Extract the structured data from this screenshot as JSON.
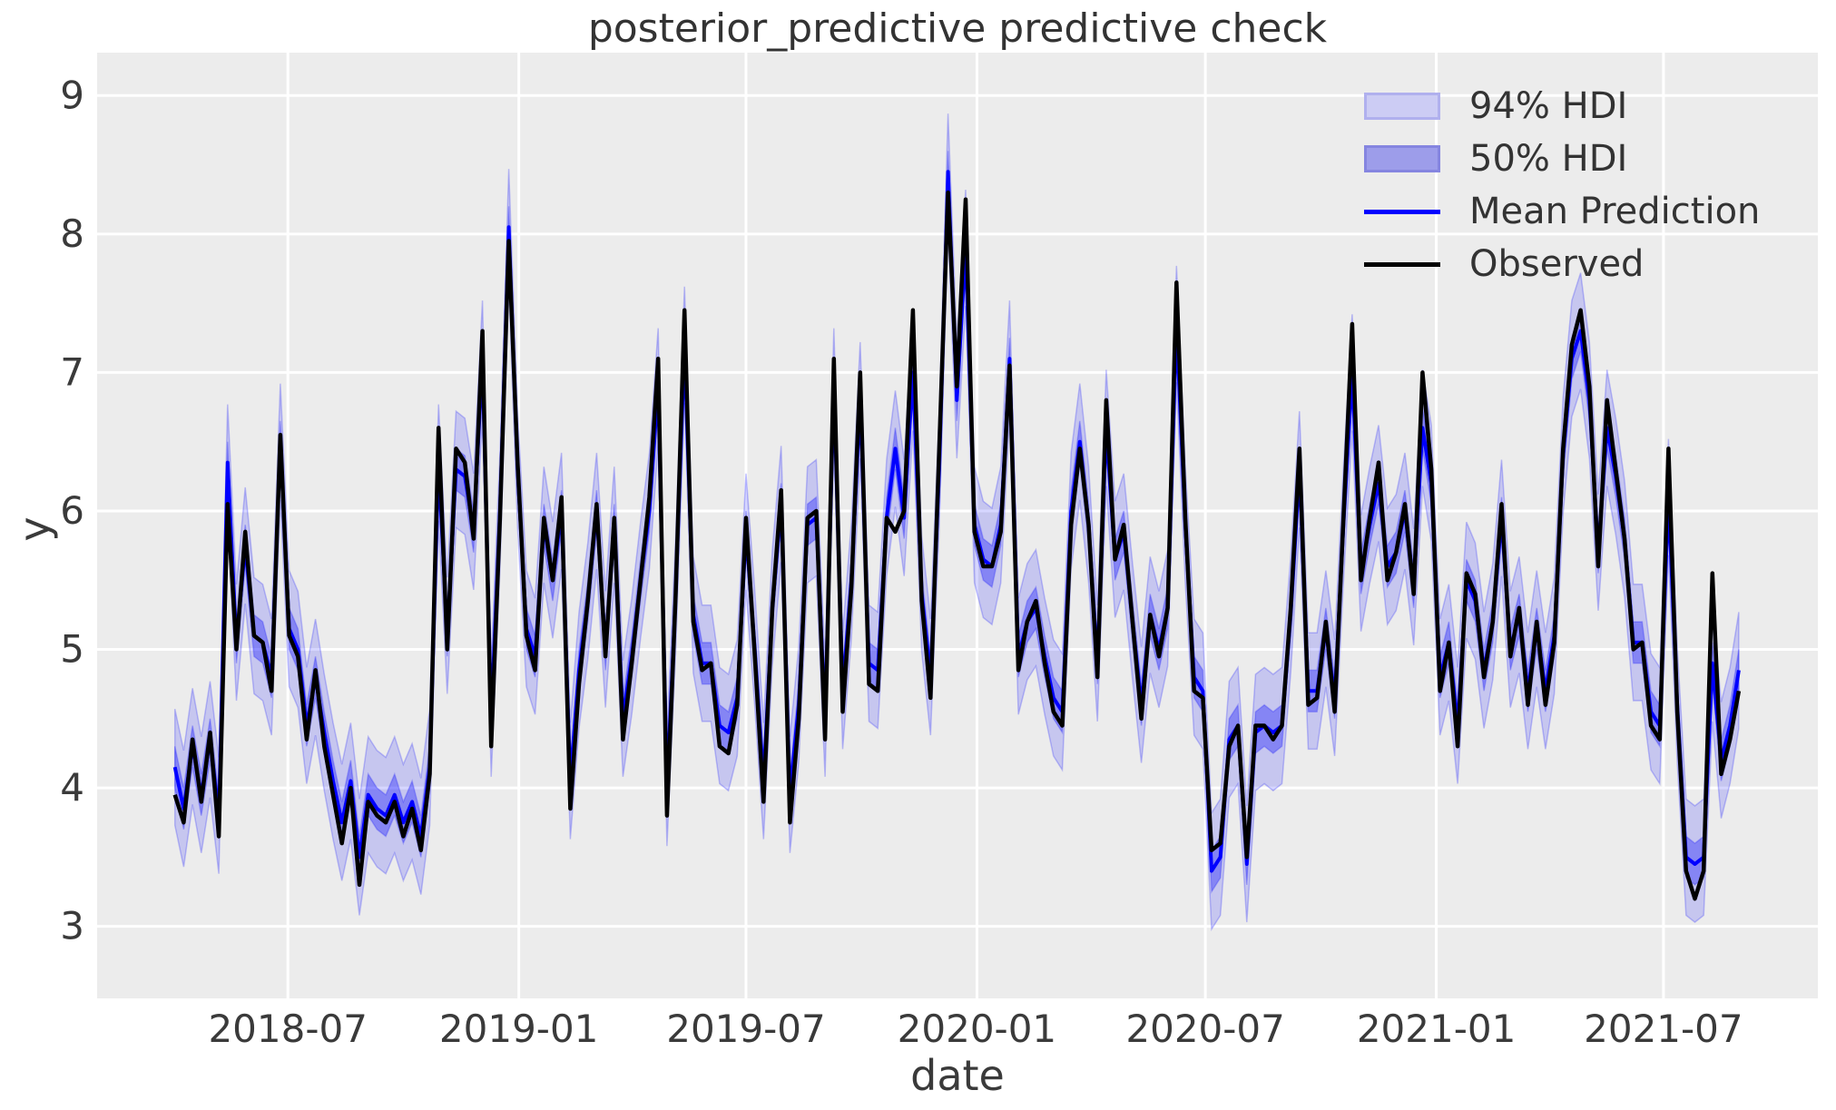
{
  "title": "posterior_predictive predictive check",
  "xlabel": "date",
  "ylabel": "y",
  "colors": {
    "figure_bg": "#ffffff",
    "axes_bg": "#ececec",
    "grid": "#ffffff",
    "tick_text": "#3a3a3a",
    "observed": "#000000",
    "mean": "#0000ff",
    "hdi94_fill": "rgba(0,0,255,0.16)",
    "hdi50_fill": "rgba(0,0,255,0.33)",
    "band_edge": "rgba(0,0,255,0.22)"
  },
  "legend": {
    "items": [
      {
        "label": "94% HDI",
        "type": "patch",
        "fill": "#ccccf4",
        "border": "#b0b0ee"
      },
      {
        "label": "50% HDI",
        "type": "patch",
        "fill": "#9d9dea",
        "border": "#8585e0"
      },
      {
        "label": "Mean Prediction",
        "type": "line",
        "color": "#0000ff"
      },
      {
        "label": "Observed",
        "type": "line",
        "color": "#000000"
      }
    ]
  },
  "chart_data": {
    "type": "line",
    "title": "posterior_predictive predictive check",
    "xlabel": "date",
    "ylabel": "y",
    "grid": true,
    "legend_position": "upper right",
    "x": {
      "start": "2018-04-02",
      "step_days": 7,
      "count": 179
    },
    "xlim": [
      "2018-01-30",
      "2021-11-01"
    ],
    "ylim": [
      2.48,
      9.31
    ],
    "yticks": [
      3,
      4,
      5,
      6,
      7,
      8,
      9
    ],
    "xticks": [
      {
        "date": "2018-07-01",
        "label": "2018-07"
      },
      {
        "date": "2019-01-01",
        "label": "2019-01"
      },
      {
        "date": "2019-07-01",
        "label": "2019-07"
      },
      {
        "date": "2020-01-01",
        "label": "2020-01"
      },
      {
        "date": "2020-07-01",
        "label": "2020-07"
      },
      {
        "date": "2021-01-01",
        "label": "2021-01"
      },
      {
        "date": "2021-07-01",
        "label": "2021-07"
      }
    ],
    "series": [
      {
        "name": "Observed",
        "type": "line",
        "color": "#000000",
        "values": [
          3.95,
          3.75,
          4.35,
          3.9,
          4.4,
          3.65,
          6.05,
          5.0,
          5.85,
          5.1,
          5.05,
          4.7,
          6.55,
          5.1,
          4.95,
          4.35,
          4.85,
          4.3,
          3.95,
          3.6,
          4.0,
          3.3,
          3.9,
          3.8,
          3.75,
          3.9,
          3.65,
          3.85,
          3.55,
          4.1,
          6.6,
          5.0,
          6.45,
          6.35,
          5.8,
          7.3,
          4.3,
          5.95,
          7.95,
          6.35,
          5.1,
          4.85,
          5.95,
          5.5,
          6.1,
          3.85,
          4.75,
          5.35,
          6.05,
          4.95,
          5.95,
          4.35,
          4.9,
          5.5,
          6.1,
          7.1,
          3.8,
          5.4,
          7.45,
          5.2,
          4.85,
          4.9,
          4.3,
          4.25,
          4.6,
          5.95,
          4.95,
          3.9,
          5.3,
          6.15,
          3.75,
          4.5,
          5.95,
          6.0,
          4.35,
          7.1,
          4.55,
          5.45,
          7.0,
          4.75,
          4.7,
          5.95,
          5.85,
          6.0,
          7.45,
          5.35,
          4.65,
          6.45,
          8.3,
          6.9,
          8.25,
          5.85,
          5.6,
          5.6,
          5.85,
          7.05,
          4.85,
          5.2,
          5.35,
          4.9,
          4.55,
          4.45,
          5.9,
          6.45,
          5.9,
          4.8,
          6.8,
          5.65,
          5.9,
          5.2,
          4.5,
          5.25,
          4.95,
          5.3,
          7.65,
          5.95,
          4.7,
          4.65,
          3.55,
          3.6,
          4.3,
          4.45,
          3.5,
          4.45,
          4.45,
          4.35,
          4.45,
          5.3,
          6.45,
          4.6,
          4.65,
          5.2,
          4.55,
          5.95,
          7.35,
          5.5,
          5.95,
          6.35,
          5.5,
          5.7,
          6.05,
          5.4,
          7.0,
          6.3,
          4.7,
          5.05,
          4.3,
          5.55,
          5.4,
          4.8,
          5.2,
          6.05,
          4.95,
          5.3,
          4.6,
          5.2,
          4.6,
          5.05,
          6.45,
          7.2,
          7.45,
          6.9,
          5.6,
          6.8,
          6.3,
          5.8,
          5.0,
          5.05,
          4.45,
          4.35,
          6.45,
          4.55,
          3.4,
          3.2,
          3.4,
          5.55,
          4.1,
          4.35,
          4.7
        ]
      },
      {
        "name": "Mean Prediction",
        "type": "line",
        "color": "#0000ff",
        "values": [
          4.15,
          3.85,
          4.3,
          3.95,
          4.35,
          3.8,
          6.35,
          5.05,
          5.75,
          5.1,
          5.05,
          4.8,
          6.5,
          5.15,
          5.0,
          4.45,
          4.8,
          4.4,
          4.05,
          3.75,
          4.05,
          3.5,
          3.95,
          3.85,
          3.8,
          3.95,
          3.75,
          3.9,
          3.65,
          4.15,
          6.35,
          5.1,
          6.3,
          6.25,
          5.85,
          7.1,
          4.5,
          6.0,
          8.05,
          6.3,
          5.15,
          4.95,
          5.9,
          5.5,
          6.0,
          4.05,
          4.85,
          5.35,
          6.0,
          5.0,
          5.9,
          4.5,
          4.95,
          5.5,
          6.0,
          6.9,
          4.0,
          5.4,
          7.2,
          5.25,
          4.9,
          4.9,
          4.45,
          4.4,
          4.65,
          5.85,
          5.0,
          4.05,
          5.3,
          6.05,
          3.95,
          4.6,
          5.9,
          5.95,
          4.5,
          6.9,
          4.7,
          5.5,
          6.8,
          4.9,
          4.85,
          5.95,
          6.45,
          5.95,
          7.0,
          5.4,
          4.8,
          6.3,
          8.45,
          6.8,
          7.9,
          5.9,
          5.65,
          5.6,
          5.9,
          7.1,
          4.95,
          5.2,
          5.3,
          4.95,
          4.65,
          4.55,
          6.0,
          6.5,
          5.9,
          4.9,
          6.6,
          5.65,
          5.85,
          5.2,
          4.6,
          5.25,
          5.0,
          5.3,
          7.35,
          5.9,
          4.8,
          4.7,
          3.4,
          3.5,
          4.35,
          4.45,
          3.45,
          4.4,
          4.45,
          4.4,
          4.45,
          5.25,
          6.3,
          4.7,
          4.7,
          5.15,
          4.65,
          5.9,
          7.0,
          5.55,
          5.9,
          6.2,
          5.6,
          5.7,
          6.0,
          5.45,
          6.6,
          6.2,
          4.8,
          5.05,
          4.45,
          5.5,
          5.35,
          4.85,
          5.2,
          5.95,
          5.0,
          5.25,
          4.7,
          5.15,
          4.7,
          5.1,
          6.4,
          7.1,
          7.3,
          6.8,
          5.7,
          6.6,
          6.25,
          5.8,
          5.05,
          5.05,
          4.55,
          4.45,
          6.1,
          4.6,
          3.5,
          3.45,
          3.5,
          4.9,
          4.2,
          4.45,
          4.85
        ]
      },
      {
        "name": "94% HDI",
        "type": "band",
        "around": "Mean Prediction",
        "half_width": 0.42,
        "fill": "rgba(0,0,255,0.16)"
      },
      {
        "name": "50% HDI",
        "type": "band",
        "around": "Mean Prediction",
        "half_width": 0.15,
        "fill": "rgba(0,0,255,0.33)"
      }
    ]
  }
}
